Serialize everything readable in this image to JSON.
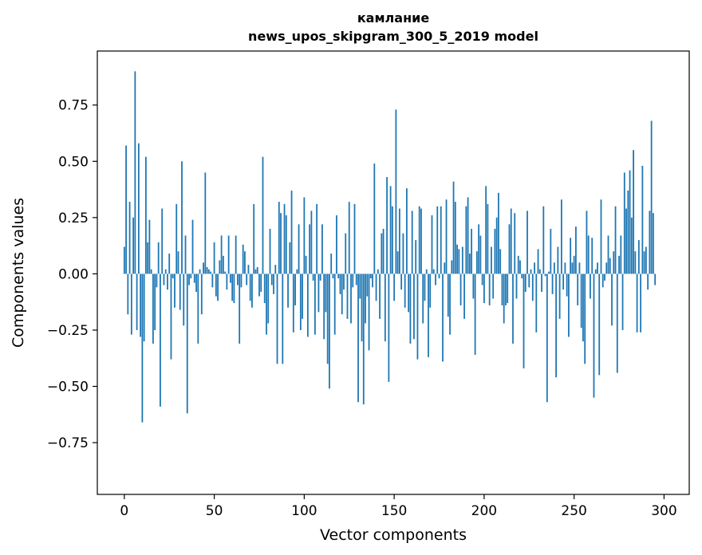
{
  "chart_data": {
    "type": "bar",
    "title_line1": "камлание",
    "title_line2": "news_upos_skipgram_300_5_2019 model",
    "xlabel": "Vector components",
    "ylabel": "Components values",
    "xlim": [
      -15,
      314
    ],
    "ylim": [
      -0.98,
      0.99
    ],
    "x_ticks": [
      0,
      50,
      100,
      150,
      200,
      250,
      300
    ],
    "x_tick_labels": [
      "0",
      "50",
      "100",
      "150",
      "200",
      "250",
      "300"
    ],
    "y_ticks": [
      -0.75,
      -0.5,
      -0.25,
      0.0,
      0.25,
      0.5,
      0.75
    ],
    "y_tick_labels": [
      "−0.75",
      "−0.50",
      "−0.25",
      "0.00",
      "0.25",
      "0.50",
      "0.75"
    ],
    "bar_color": "#1f77b4",
    "values": [
      0.12,
      0.57,
      -0.18,
      0.32,
      -0.27,
      0.25,
      0.9,
      -0.25,
      0.58,
      -0.28,
      -0.66,
      -0.3,
      0.52,
      0.14,
      0.24,
      0.02,
      -0.31,
      -0.25,
      -0.06,
      0.14,
      -0.59,
      0.29,
      -0.05,
      0.02,
      -0.07,
      0.09,
      -0.38,
      -0.02,
      -0.15,
      0.31,
      0.1,
      -0.16,
      0.5,
      -0.23,
      0.17,
      -0.62,
      -0.05,
      -0.02,
      0.24,
      -0.04,
      -0.08,
      -0.31,
      0.02,
      -0.18,
      0.05,
      0.45,
      0.03,
      0.02,
      0.01,
      -0.06,
      0.14,
      -0.1,
      -0.12,
      0.06,
      0.17,
      0.08,
      0.01,
      -0.07,
      0.17,
      -0.04,
      -0.12,
      -0.13,
      0.17,
      -0.05,
      -0.31,
      -0.06,
      0.13,
      0.1,
      -0.05,
      0.04,
      -0.12,
      -0.15,
      0.31,
      0.02,
      0.03,
      -0.1,
      -0.08,
      0.52,
      -0.13,
      -0.27,
      -0.22,
      0.2,
      -0.05,
      -0.09,
      0.04,
      -0.4,
      0.32,
      0.27,
      -0.4,
      0.31,
      0.26,
      -0.15,
      0.14,
      0.37,
      -0.26,
      -0.14,
      0.02,
      0.22,
      -0.25,
      -0.2,
      0.34,
      0.08,
      -0.28,
      0.22,
      0.28,
      -0.03,
      -0.27,
      0.31,
      -0.17,
      -0.03,
      0.22,
      -0.29,
      -0.17,
      -0.4,
      -0.51,
      0.09,
      -0.02,
      -0.27,
      0.26,
      -0.02,
      -0.09,
      -0.18,
      -0.07,
      0.18,
      -0.2,
      0.32,
      -0.22,
      -0.06,
      0.31,
      -0.05,
      -0.57,
      -0.11,
      -0.3,
      -0.58,
      -0.22,
      -0.1,
      -0.34,
      -0.02,
      -0.06,
      0.49,
      -0.12,
      0.02,
      -0.2,
      0.18,
      0.2,
      -0.3,
      0.43,
      -0.48,
      0.39,
      0.3,
      -0.12,
      0.73,
      0.1,
      0.29,
      -0.07,
      0.18,
      -0.15,
      0.38,
      -0.17,
      -0.31,
      0.28,
      -0.29,
      0.15,
      -0.38,
      0.3,
      0.29,
      -0.22,
      -0.12,
      0.02,
      -0.37,
      -0.15,
      0.26,
      0.02,
      -0.05,
      0.3,
      -0.02,
      0.3,
      -0.39,
      0.05,
      0.33,
      -0.19,
      -0.27,
      0.06,
      0.41,
      0.32,
      0.13,
      0.11,
      -0.14,
      0.12,
      -0.2,
      0.3,
      0.34,
      0.09,
      0.2,
      -0.11,
      -0.36,
      0.1,
      0.22,
      0.17,
      -0.05,
      -0.13,
      0.39,
      0.31,
      -0.14,
      0.12,
      -0.11,
      0.2,
      0.25,
      0.36,
      0.11,
      -0.14,
      -0.22,
      -0.14,
      -0.13,
      0.22,
      0.29,
      -0.31,
      0.27,
      -0.11,
      0.08,
      0.06,
      -0.02,
      -0.42,
      -0.08,
      0.28,
      -0.06,
      0.02,
      -0.12,
      0.05,
      -0.26,
      0.11,
      0.02,
      -0.08,
      0.3,
      -0.01,
      -0.57,
      0.01,
      0.2,
      -0.09,
      0.05,
      -0.46,
      0.12,
      -0.2,
      0.33,
      -0.07,
      0.05,
      -0.1,
      -0.28,
      0.16,
      0.05,
      0.08,
      0.21,
      -0.14,
      0.05,
      -0.24,
      -0.3,
      -0.4,
      0.28,
      0.17,
      -0.11,
      0.16,
      -0.55,
      0.02,
      0.05,
      -0.45,
      0.33,
      -0.06,
      -0.03,
      0.05,
      0.17,
      0.07,
      -0.23,
      0.1,
      0.3,
      -0.44,
      0.08,
      0.17,
      -0.25,
      0.45,
      0.29,
      0.37,
      0.46,
      0.25,
      0.55,
      0.1,
      -0.26,
      0.15,
      -0.26,
      0.48,
      0.1,
      0.12,
      -0.07,
      0.28,
      0.68,
      0.27,
      -0.05
    ]
  }
}
